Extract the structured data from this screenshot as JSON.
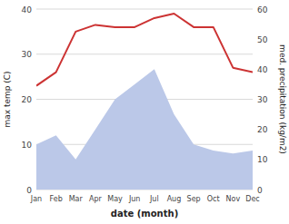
{
  "chart_data": {
    "type": "line",
    "xlabel": "date (month)",
    "ylabel": "max temp (C)",
    "y2label": "med. precipitation (kg/m2)",
    "categories": [
      "Jan",
      "Feb",
      "Mar",
      "Apr",
      "May",
      "Jun",
      "Jul",
      "Aug",
      "Sep",
      "Oct",
      "Nov",
      "Dec"
    ],
    "series": [
      {
        "type": "area",
        "axis": "y2",
        "color": "#bbc8e8",
        "values": [
          15,
          18,
          10,
          20,
          30,
          35,
          40,
          25,
          15,
          13,
          12,
          13
        ]
      },
      {
        "type": "line",
        "color": "#cc3333",
        "values": [
          23,
          26,
          35,
          36.5,
          36,
          36,
          38,
          39,
          36,
          36,
          27,
          26
        ]
      }
    ],
    "ylim": [
      0,
      40
    ],
    "yticks": [
      0,
      10,
      20,
      30,
      40
    ],
    "y2lim": [
      0,
      60
    ],
    "y2ticks": [
      0,
      10,
      20,
      30,
      40,
      50,
      60
    ],
    "grid": true
  }
}
